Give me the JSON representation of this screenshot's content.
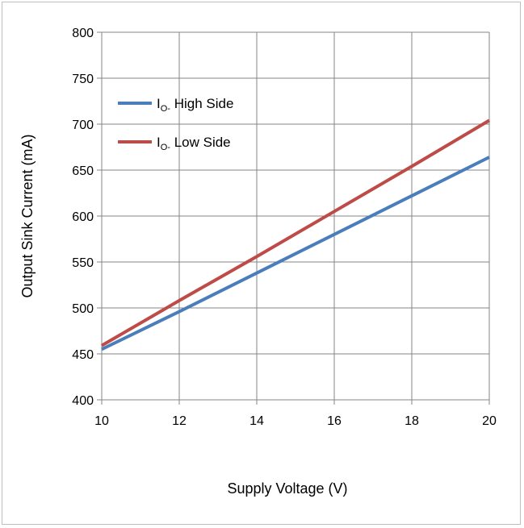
{
  "chart_data": {
    "type": "line",
    "xlabel": "Supply Voltage (V)",
    "ylabel": "Output Sink Current (mA)",
    "xlim": [
      10,
      20
    ],
    "ylim": [
      400,
      800
    ],
    "x_ticks": [
      10,
      12,
      14,
      16,
      18,
      20
    ],
    "y_ticks": [
      400,
      450,
      500,
      550,
      600,
      650,
      700,
      750,
      800
    ],
    "grid": true,
    "legend_position": "top-left",
    "series": [
      {
        "name": "I_O- High Side",
        "legend_main": "I",
        "legend_sub": "O-",
        "legend_rest": " High Side",
        "color": "#4a7ebb",
        "x": [
          10,
          12,
          14,
          16,
          18,
          20
        ],
        "values": [
          455,
          496,
          538,
          580,
          622,
          664
        ]
      },
      {
        "name": "I_O- Low Side",
        "legend_main": "I",
        "legend_sub": "O-",
        "legend_rest": " Low Side",
        "color": "#be4b48",
        "x": [
          10,
          12,
          14,
          16,
          18,
          20
        ],
        "values": [
          459,
          508,
          556,
          605,
          654,
          704
        ]
      }
    ]
  }
}
